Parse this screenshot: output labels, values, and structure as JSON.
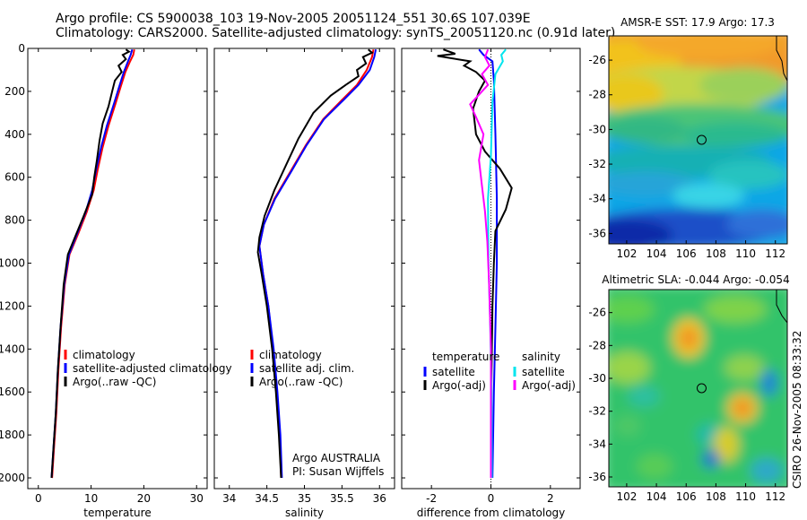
{
  "title": {
    "line1": "Argo profile: CS 5900038_103 19-Nov-2005 20051124_551 30.6S 107.039E",
    "line2": "Climatology: CARS2000. Satellite-adjusted climatology: synTS_20051120.nc (0.91d later)"
  },
  "colors": {
    "climatology": "#ff0000",
    "satellite": "#0000ff",
    "argo": "#000000",
    "salinity_satellite": "#00e5ee",
    "salinity_argo_adj": "#ff00ff",
    "axis": "#000000"
  },
  "side_text": "CSIRO 26-Nov-2005 08:33:32",
  "chart_data": [
    {
      "id": "temperature",
      "type": "line",
      "xlabel": "temperature",
      "ylabel": "",
      "xlim": [
        -2,
        32
      ],
      "ylim": [
        2050,
        0
      ],
      "xticks": [
        0,
        10,
        20,
        30
      ],
      "yticks": [
        0,
        200,
        400,
        600,
        800,
        1000,
        1200,
        1400,
        1600,
        1800,
        2000
      ],
      "legend": {
        "position": "lower-right",
        "entries": [
          {
            "label": "climatology",
            "color": "#ff0000"
          },
          {
            "label": "satellite-adjusted climatology",
            "color": "#0000ff"
          },
          {
            "label": "Argo(..raw -QC)",
            "color": "#000000"
          }
        ]
      },
      "series": [
        {
          "name": "climatology",
          "color": "#ff0000",
          "points": [
            [
              18.2,
              5
            ],
            [
              18.0,
              30
            ],
            [
              17.4,
              60
            ],
            [
              16.5,
              110
            ],
            [
              15.6,
              180
            ],
            [
              14.6,
              260
            ],
            [
              13.3,
              360
            ],
            [
              12.2,
              460
            ],
            [
              11.3,
              560
            ],
            [
              10.5,
              660
            ],
            [
              9.2,
              760
            ],
            [
              7.6,
              860
            ],
            [
              5.9,
              960
            ],
            [
              5.0,
              1100
            ],
            [
              4.3,
              1300
            ],
            [
              3.8,
              1500
            ],
            [
              3.4,
              1700
            ],
            [
              3.0,
              1850
            ],
            [
              2.6,
              2000
            ]
          ]
        },
        {
          "name": "satellite-adjusted climatology",
          "color": "#0000ff",
          "points": [
            [
              17.8,
              5
            ],
            [
              17.5,
              30
            ],
            [
              17.0,
              60
            ],
            [
              16.2,
              110
            ],
            [
              15.3,
              180
            ],
            [
              14.3,
              260
            ],
            [
              13.0,
              360
            ],
            [
              11.9,
              460
            ],
            [
              11.0,
              560
            ],
            [
              10.2,
              660
            ],
            [
              9.0,
              760
            ],
            [
              7.4,
              860
            ],
            [
              5.8,
              960
            ],
            [
              4.9,
              1100
            ],
            [
              4.2,
              1300
            ],
            [
              3.7,
              1500
            ],
            [
              3.3,
              1700
            ],
            [
              2.9,
              1850
            ],
            [
              2.5,
              2000
            ]
          ]
        },
        {
          "name": "Argo(..raw -QC)",
          "color": "#000000",
          "points": [
            [
              16.6,
              5
            ],
            [
              17.2,
              15
            ],
            [
              16.0,
              30
            ],
            [
              16.6,
              50
            ],
            [
              15.2,
              80
            ],
            [
              15.8,
              110
            ],
            [
              14.5,
              150
            ],
            [
              14.0,
              200
            ],
            [
              13.3,
              270
            ],
            [
              12.2,
              350
            ],
            [
              11.6,
              430
            ],
            [
              11.1,
              520
            ],
            [
              10.6,
              600
            ],
            [
              10.2,
              680
            ],
            [
              8.6,
              780
            ],
            [
              7.1,
              870
            ],
            [
              5.6,
              960
            ],
            [
              4.8,
              1100
            ],
            [
              4.2,
              1300
            ],
            [
              3.7,
              1500
            ],
            [
              3.3,
              1700
            ],
            [
              2.9,
              1850
            ],
            [
              2.5,
              2000
            ]
          ]
        }
      ]
    },
    {
      "id": "salinity",
      "type": "line",
      "xlabel": "salinity",
      "ylabel": "",
      "xlim": [
        33.8,
        36.2
      ],
      "ylim": [
        2050,
        0
      ],
      "xticks": [
        34,
        34.5,
        35,
        35.5,
        36
      ],
      "xticklabels": [
        "34",
        "34.5",
        "35",
        "35.5",
        "36"
      ],
      "legend": {
        "position": "lower-right",
        "entries": [
          {
            "label": "climatology",
            "color": "#ff0000"
          },
          {
            "label": "satellite adj. clim.",
            "color": "#0000ff"
          },
          {
            "label": "Argo(..raw -QC)",
            "color": "#000000"
          }
        ]
      },
      "annotations": [
        "Argo AUSTRALIA",
        "PI: Susan Wijffels"
      ],
      "series": [
        {
          "name": "climatology",
          "color": "#ff0000",
          "points": [
            [
              35.92,
              5
            ],
            [
              35.9,
              40
            ],
            [
              35.83,
              100
            ],
            [
              35.7,
              170
            ],
            [
              35.5,
              240
            ],
            [
              35.25,
              330
            ],
            [
              35.02,
              450
            ],
            [
              34.82,
              570
            ],
            [
              34.6,
              700
            ],
            [
              34.46,
              820
            ],
            [
              34.4,
              920
            ],
            [
              34.45,
              1050
            ],
            [
              34.52,
              1200
            ],
            [
              34.58,
              1400
            ],
            [
              34.63,
              1600
            ],
            [
              34.67,
              1800
            ],
            [
              34.69,
              2000
            ]
          ]
        },
        {
          "name": "satellite adj. clim.",
          "color": "#0000ff",
          "points": [
            [
              35.95,
              5
            ],
            [
              35.93,
              40
            ],
            [
              35.87,
              100
            ],
            [
              35.72,
              170
            ],
            [
              35.52,
              240
            ],
            [
              35.26,
              330
            ],
            [
              35.03,
              450
            ],
            [
              34.83,
              570
            ],
            [
              34.61,
              700
            ],
            [
              34.46,
              820
            ],
            [
              34.4,
              920
            ],
            [
              34.45,
              1050
            ],
            [
              34.52,
              1200
            ],
            [
              34.59,
              1400
            ],
            [
              34.64,
              1600
            ],
            [
              34.68,
              1800
            ],
            [
              34.7,
              2000
            ]
          ]
        },
        {
          "name": "Argo(..raw -QC)",
          "color": "#000000",
          "points": [
            [
              35.85,
              5
            ],
            [
              35.9,
              20
            ],
            [
              35.78,
              40
            ],
            [
              35.82,
              70
            ],
            [
              35.7,
              100
            ],
            [
              35.72,
              130
            ],
            [
              35.55,
              170
            ],
            [
              35.35,
              220
            ],
            [
              35.12,
              300
            ],
            [
              34.92,
              420
            ],
            [
              34.76,
              540
            ],
            [
              34.6,
              660
            ],
            [
              34.47,
              780
            ],
            [
              34.4,
              880
            ],
            [
              34.38,
              950
            ],
            [
              34.43,
              1050
            ],
            [
              34.5,
              1200
            ],
            [
              34.57,
              1400
            ],
            [
              34.62,
              1600
            ],
            [
              34.66,
              1800
            ],
            [
              34.69,
              2000
            ]
          ]
        }
      ]
    },
    {
      "id": "difference",
      "type": "line",
      "xlabel": "difference from climatology",
      "ylabel": "",
      "xlim": [
        -3,
        3
      ],
      "ylim": [
        2050,
        0
      ],
      "xticks": [
        -2,
        0,
        2
      ],
      "legend": {
        "position": "lower-right",
        "columns": [
          {
            "header": "temperature",
            "entries": [
              {
                "label": "satellite",
                "color": "#0000ff"
              },
              {
                "label": "Argo(-adj)",
                "color": "#000000"
              }
            ]
          },
          {
            "header": "salinity",
            "entries": [
              {
                "label": "satellite",
                "color": "#00e5ee"
              },
              {
                "label": "Argo(-adj)",
                "color": "#ff00ff"
              }
            ]
          }
        ]
      },
      "series": [
        {
          "name": "temperature satellite",
          "color": "#0000ff",
          "points": [
            [
              -0.4,
              5
            ],
            [
              -0.25,
              30
            ],
            [
              0.05,
              60
            ],
            [
              0.1,
              150
            ],
            [
              0.15,
              400
            ],
            [
              0.2,
              700
            ],
            [
              0.2,
              1000
            ],
            [
              0.15,
              1300
            ],
            [
              0.1,
              1600
            ],
            [
              0.05,
              2000
            ]
          ]
        },
        {
          "name": "temperature Argo(-adj)",
          "color": "#000000",
          "points": [
            [
              -1.6,
              5
            ],
            [
              -1.2,
              25
            ],
            [
              -1.8,
              35
            ],
            [
              -0.7,
              60
            ],
            [
              -0.9,
              80
            ],
            [
              -0.5,
              110
            ],
            [
              -0.2,
              150
            ],
            [
              -0.4,
              200
            ],
            [
              -0.6,
              280
            ],
            [
              -0.5,
              400
            ],
            [
              -0.2,
              480
            ],
            [
              0.3,
              560
            ],
            [
              0.7,
              650
            ],
            [
              0.5,
              750
            ],
            [
              0.15,
              850
            ],
            [
              0.1,
              1000
            ],
            [
              0.05,
              1200
            ],
            [
              0.02,
              1500
            ],
            [
              0.0,
              2000
            ]
          ]
        },
        {
          "name": "salinity satellite",
          "color": "#00e5ee",
          "points": [
            [
              0.5,
              5
            ],
            [
              0.35,
              30
            ],
            [
              0.4,
              60
            ],
            [
              0.15,
              120
            ],
            [
              0.05,
              250
            ],
            [
              0.0,
              500
            ],
            [
              -0.1,
              700
            ],
            [
              -0.08,
              1000
            ],
            [
              -0.02,
              1300
            ],
            [
              0.02,
              1600
            ],
            [
              0.03,
              2000
            ]
          ]
        },
        {
          "name": "salinity Argo(-adj)",
          "color": "#ff00ff",
          "points": [
            [
              -0.1,
              5
            ],
            [
              -0.2,
              40
            ],
            [
              -0.05,
              80
            ],
            [
              -0.3,
              120
            ],
            [
              -0.1,
              170
            ],
            [
              -0.7,
              260
            ],
            [
              -0.5,
              320
            ],
            [
              -0.25,
              400
            ],
            [
              -0.4,
              520
            ],
            [
              -0.3,
              640
            ],
            [
              -0.2,
              760
            ],
            [
              -0.12,
              900
            ],
            [
              -0.06,
              1100
            ],
            [
              0.0,
              1400
            ],
            [
              0.0,
              2000
            ]
          ]
        }
      ]
    },
    {
      "id": "sst_map",
      "type": "heatmap",
      "title": "AMSR-E SST: 17.9 Argo: 17.3",
      "xlim": [
        100.8,
        112.8
      ],
      "ylim": [
        -36.6,
        -24.6
      ],
      "xticks": [
        102,
        104,
        106,
        108,
        110,
        112
      ],
      "yticks": [
        -26,
        -28,
        -30,
        -32,
        -34,
        -36
      ],
      "marker": {
        "lon": 107.04,
        "lat": -30.6
      }
    },
    {
      "id": "sla_map",
      "type": "heatmap",
      "title": "Altimetric SLA: -0.044 Argo: -0.054",
      "xlim": [
        100.8,
        112.8
      ],
      "ylim": [
        -36.6,
        -24.6
      ],
      "xticks": [
        102,
        104,
        106,
        108,
        110,
        112
      ],
      "yticks": [
        -26,
        -28,
        -30,
        -32,
        -34,
        -36
      ],
      "marker": {
        "lon": 107.04,
        "lat": -30.6
      }
    }
  ]
}
